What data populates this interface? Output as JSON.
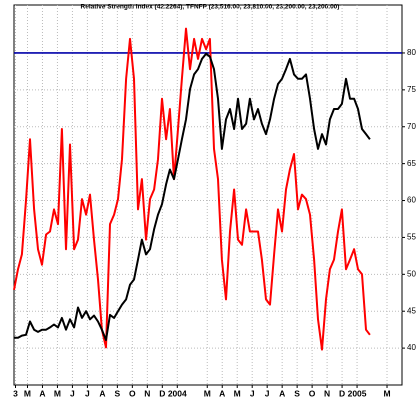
{
  "chart_data": {
    "type": "line",
    "title": "Relative Strength Index (42.2264), TFNFP (23,516.00, 23,810.00, 23,200.00, 23,200.00)",
    "xlim": [
      1.1,
      27
    ],
    "ylim": [
      35,
      86.5
    ],
    "yticks": [
      40,
      45,
      50,
      55,
      60,
      65,
      70,
      75,
      80
    ],
    "xticks": [
      {
        "value": 1.2,
        "label": "3"
      },
      {
        "value": 2,
        "label": "M"
      },
      {
        "value": 3,
        "label": "A"
      },
      {
        "value": 4,
        "label": "M"
      },
      {
        "value": 5,
        "label": "J"
      },
      {
        "value": 6,
        "label": "J"
      },
      {
        "value": 7,
        "label": "A"
      },
      {
        "value": 8,
        "label": "S"
      },
      {
        "value": 9,
        "label": "O"
      },
      {
        "value": 10,
        "label": "N"
      },
      {
        "value": 11,
        "label": "D"
      },
      {
        "value": 12,
        "label": "2004"
      },
      {
        "value": 14,
        "label": "M"
      },
      {
        "value": 15,
        "label": "A"
      },
      {
        "value": 16,
        "label": "M"
      },
      {
        "value": 17,
        "label": "J"
      },
      {
        "value": 18,
        "label": "J"
      },
      {
        "value": 19,
        "label": "A"
      },
      {
        "value": 20,
        "label": "S"
      },
      {
        "value": 21,
        "label": "O"
      },
      {
        "value": 22,
        "label": "N"
      },
      {
        "value": 23,
        "label": "D"
      },
      {
        "value": 24,
        "label": "2005"
      },
      {
        "value": 26,
        "label": "M"
      }
    ],
    "grid": true,
    "hline": 80,
    "hline_color": "#0000aa",
    "x": [
      1.1,
      1.37,
      1.63,
      1.9,
      2.17,
      2.44,
      2.7,
      2.97,
      3.24,
      3.5,
      3.77,
      4.04,
      4.3,
      4.57,
      4.84,
      5.11,
      5.37,
      5.64,
      5.91,
      6.17,
      6.44,
      6.71,
      6.97,
      7.24,
      7.51,
      7.78,
      8.04,
      8.31,
      8.58,
      8.84,
      9.11,
      9.38,
      9.64,
      9.91,
      10.18,
      10.45,
      10.71,
      10.98,
      11.25,
      11.51,
      11.78,
      12.05,
      12.31,
      12.58,
      12.85,
      13.12,
      13.38,
      13.65,
      13.92,
      14.18,
      14.45,
      14.72,
      14.98,
      15.25,
      15.52,
      15.79,
      16.05,
      16.32,
      16.59,
      16.85,
      17.12,
      17.39,
      17.65,
      17.92,
      18.19,
      18.46,
      18.72,
      18.99,
      19.26,
      19.52,
      19.79,
      20.06,
      20.32,
      20.59,
      20.86,
      21.13,
      21.39,
      21.66,
      21.93,
      22.19,
      22.46,
      22.73,
      22.99,
      23.26,
      23.53,
      23.8,
      24.06,
      24.33,
      24.6,
      24.86
    ],
    "series": [
      {
        "color": "#ff0000",
        "values": [
          47.9,
          50.7,
          52.7,
          60,
          68.3,
          58.8,
          53.4,
          51.3,
          55.4,
          55.8,
          58.8,
          56.8,
          69.7,
          53.4,
          67.6,
          53.4,
          54.7,
          60.2,
          58.1,
          60.8,
          54.7,
          49.3,
          42.5,
          40.1,
          56.8,
          58.1,
          60.2,
          65.6,
          76.5,
          81.9,
          76.5,
          58.8,
          62.9,
          54.7,
          60.2,
          61.5,
          65.6,
          73.8,
          68.3,
          72.4,
          62.9,
          69.7,
          76.5,
          83.3,
          77.8,
          81.9,
          79.2,
          81.9,
          80.5,
          81.9,
          67.0,
          62.9,
          52.0,
          46.6,
          55.8,
          61.5,
          54.7,
          54.0,
          58.8,
          55.8,
          55.8,
          55.8,
          52.0,
          46.6,
          45.9,
          52.7,
          58.8,
          55.8,
          61.5,
          64.2,
          66.3,
          58.8,
          60.8,
          60.2,
          58.1,
          52.0,
          43.9,
          39.8,
          46.6,
          50.7,
          52.0,
          55.8,
          58.8,
          50.7,
          52.0,
          53.4,
          50.7,
          50.0,
          42.5,
          41.8
        ]
      },
      {
        "color": "#000000",
        "values": [
          41.4,
          41.4,
          41.7,
          41.8,
          43.6,
          42.5,
          42.2,
          42.5,
          42.5,
          42.8,
          43.2,
          42.8,
          44.1,
          42.5,
          43.9,
          42.8,
          45.5,
          44.1,
          45.0,
          43.9,
          44.4,
          43.6,
          42.5,
          41.1,
          44.5,
          44.1,
          45.0,
          45.9,
          46.6,
          48.6,
          49.3,
          52.0,
          54.7,
          52.7,
          53.4,
          56.1,
          58.1,
          59.5,
          62.2,
          64.2,
          62.9,
          65.6,
          68.3,
          71.0,
          75.1,
          77.1,
          77.8,
          79.2,
          79.9,
          79.5,
          77.8,
          73.8,
          67.0,
          71.0,
          72.4,
          69.7,
          73.8,
          69.7,
          70.4,
          73.8,
          71.0,
          72.4,
          70.4,
          69.0,
          71.0,
          73.8,
          75.8,
          76.5,
          77.8,
          79.2,
          77.1,
          76.5,
          76.5,
          77.1,
          73.8,
          69.7,
          67.0,
          69.0,
          67.6,
          71.0,
          72.4,
          72.4,
          73.1,
          76.5,
          73.8,
          73.8,
          72.4,
          69.7,
          69.0,
          68.3
        ]
      }
    ]
  }
}
